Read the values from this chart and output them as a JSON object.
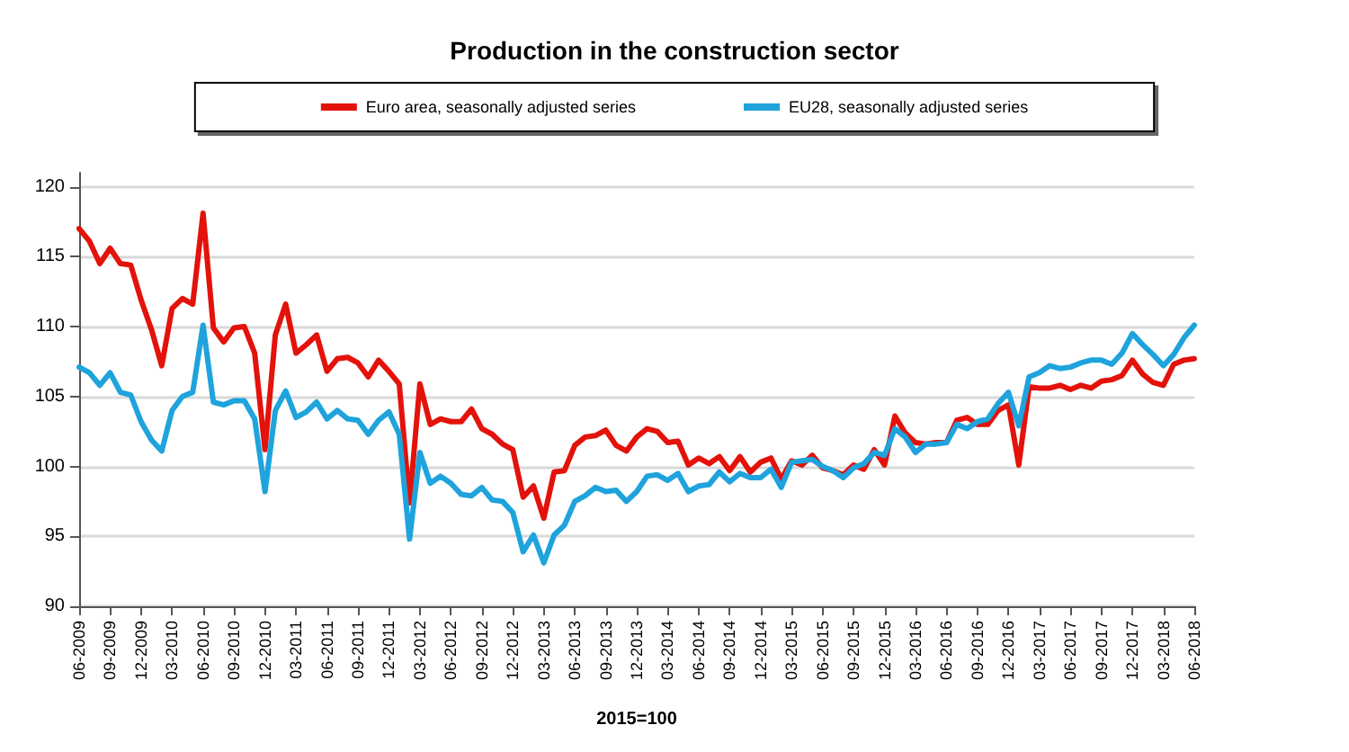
{
  "chart_data": {
    "type": "line",
    "title": "Production in the construction sector",
    "xlabel": "2015=100",
    "categories": [
      "06-2009",
      null,
      null,
      "09-2009",
      null,
      null,
      "12-2009",
      null,
      null,
      "03-2010",
      null,
      null,
      "06-2010",
      null,
      null,
      "09-2010",
      null,
      null,
      "12-2010",
      null,
      null,
      "03-2011",
      null,
      null,
      "06-2011",
      null,
      null,
      "09-2011",
      null,
      null,
      "12-2011",
      null,
      null,
      "03-2012",
      null,
      null,
      "06-2012",
      null,
      null,
      "09-2012",
      null,
      null,
      "12-2012",
      null,
      null,
      "03-2013",
      null,
      null,
      "06-2013",
      null,
      null,
      "09-2013",
      null,
      null,
      "12-2013",
      null,
      null,
      "03-2014",
      null,
      null,
      "06-2014",
      null,
      null,
      "09-2014",
      null,
      null,
      "12-2014",
      null,
      null,
      "03-2015",
      null,
      null,
      "06-2015",
      null,
      null,
      "09-2015",
      null,
      null,
      "12-2015",
      null,
      null,
      "03-2016",
      null,
      null,
      "06-2016",
      null,
      null,
      "09-2016",
      null,
      null,
      "12-2016",
      null,
      null,
      "03-2017",
      null,
      null,
      "06-2017",
      null,
      null,
      "09-2017",
      null,
      null,
      "12-2017",
      null,
      null,
      "03-2018",
      null,
      null,
      "06-2018"
    ],
    "series": [
      {
        "name": "Euro area, seasonally adjusted series",
        "color": "#e3120b",
        "values": [
          117.0,
          116.1,
          114.5,
          115.6,
          114.5,
          114.4,
          111.9,
          109.8,
          107.2,
          111.3,
          112.0,
          111.6,
          118.1,
          109.9,
          108.9,
          109.9,
          110.0,
          108.1,
          101.2,
          109.4,
          111.6,
          108.1,
          108.7,
          109.4,
          106.8,
          107.7,
          107.8,
          107.4,
          106.4,
          107.6,
          106.8,
          105.9,
          97.4,
          105.9,
          103.0,
          103.4,
          103.2,
          103.2,
          104.1,
          102.7,
          102.3,
          101.6,
          101.2,
          97.8,
          98.6,
          96.3,
          99.6,
          99.7,
          101.5,
          102.1,
          102.2,
          102.6,
          101.5,
          101.1,
          102.1,
          102.7,
          102.5,
          101.7,
          101.8,
          100.1,
          100.6,
          100.2,
          100.7,
          99.7,
          100.7,
          99.6,
          100.3,
          100.6,
          99.1,
          100.4,
          100.1,
          100.8,
          99.9,
          99.7,
          99.4,
          100.1,
          99.8,
          101.2,
          100.1,
          103.6,
          102.4,
          101.7,
          101.6,
          101.7,
          101.7,
          103.3,
          103.5,
          103.0,
          103.0,
          104.0,
          104.4,
          100.1,
          105.7,
          105.6,
          105.6,
          105.8,
          105.5,
          105.8,
          105.6,
          106.1,
          106.2,
          106.5,
          107.6,
          106.6,
          106.0,
          105.8,
          107.3,
          107.6,
          107.7
        ]
      },
      {
        "name": "EU28, seasonally adjusted series",
        "color": "#1fa3dc",
        "values": [
          107.1,
          106.7,
          105.8,
          106.7,
          105.3,
          105.1,
          103.2,
          101.9,
          101.1,
          104.0,
          105.0,
          105.3,
          110.1,
          104.6,
          104.4,
          104.7,
          104.7,
          103.4,
          98.2,
          104.0,
          105.4,
          103.5,
          103.9,
          104.6,
          103.4,
          104.0,
          103.4,
          103.3,
          102.3,
          103.3,
          103.9,
          102.3,
          94.8,
          101.0,
          98.8,
          99.3,
          98.8,
          98.0,
          97.9,
          98.5,
          97.6,
          97.5,
          96.7,
          93.9,
          95.1,
          93.1,
          95.1,
          95.8,
          97.5,
          97.9,
          98.5,
          98.2,
          98.3,
          97.5,
          98.2,
          99.3,
          99.4,
          99.0,
          99.5,
          98.2,
          98.6,
          98.7,
          99.6,
          98.9,
          99.5,
          99.2,
          99.2,
          99.8,
          98.5,
          100.3,
          100.4,
          100.5,
          100.0,
          99.7,
          99.2,
          99.9,
          100.2,
          101.0,
          100.8,
          102.7,
          102.1,
          101.0,
          101.6,
          101.6,
          101.7,
          103.0,
          102.7,
          103.2,
          103.4,
          104.5,
          105.3,
          102.9,
          106.4,
          106.7,
          107.2,
          107.0,
          107.1,
          107.4,
          107.6,
          107.6,
          107.3,
          108.1,
          109.5,
          108.7,
          108.0,
          107.2,
          108.0,
          109.2,
          110.1
        ]
      }
    ],
    "ylim": [
      90,
      121
    ],
    "yticks": [
      90,
      95,
      100,
      105,
      110,
      115,
      120
    ],
    "grid": "y",
    "legend": "top",
    "marker": "none",
    "line_style": "solid"
  }
}
